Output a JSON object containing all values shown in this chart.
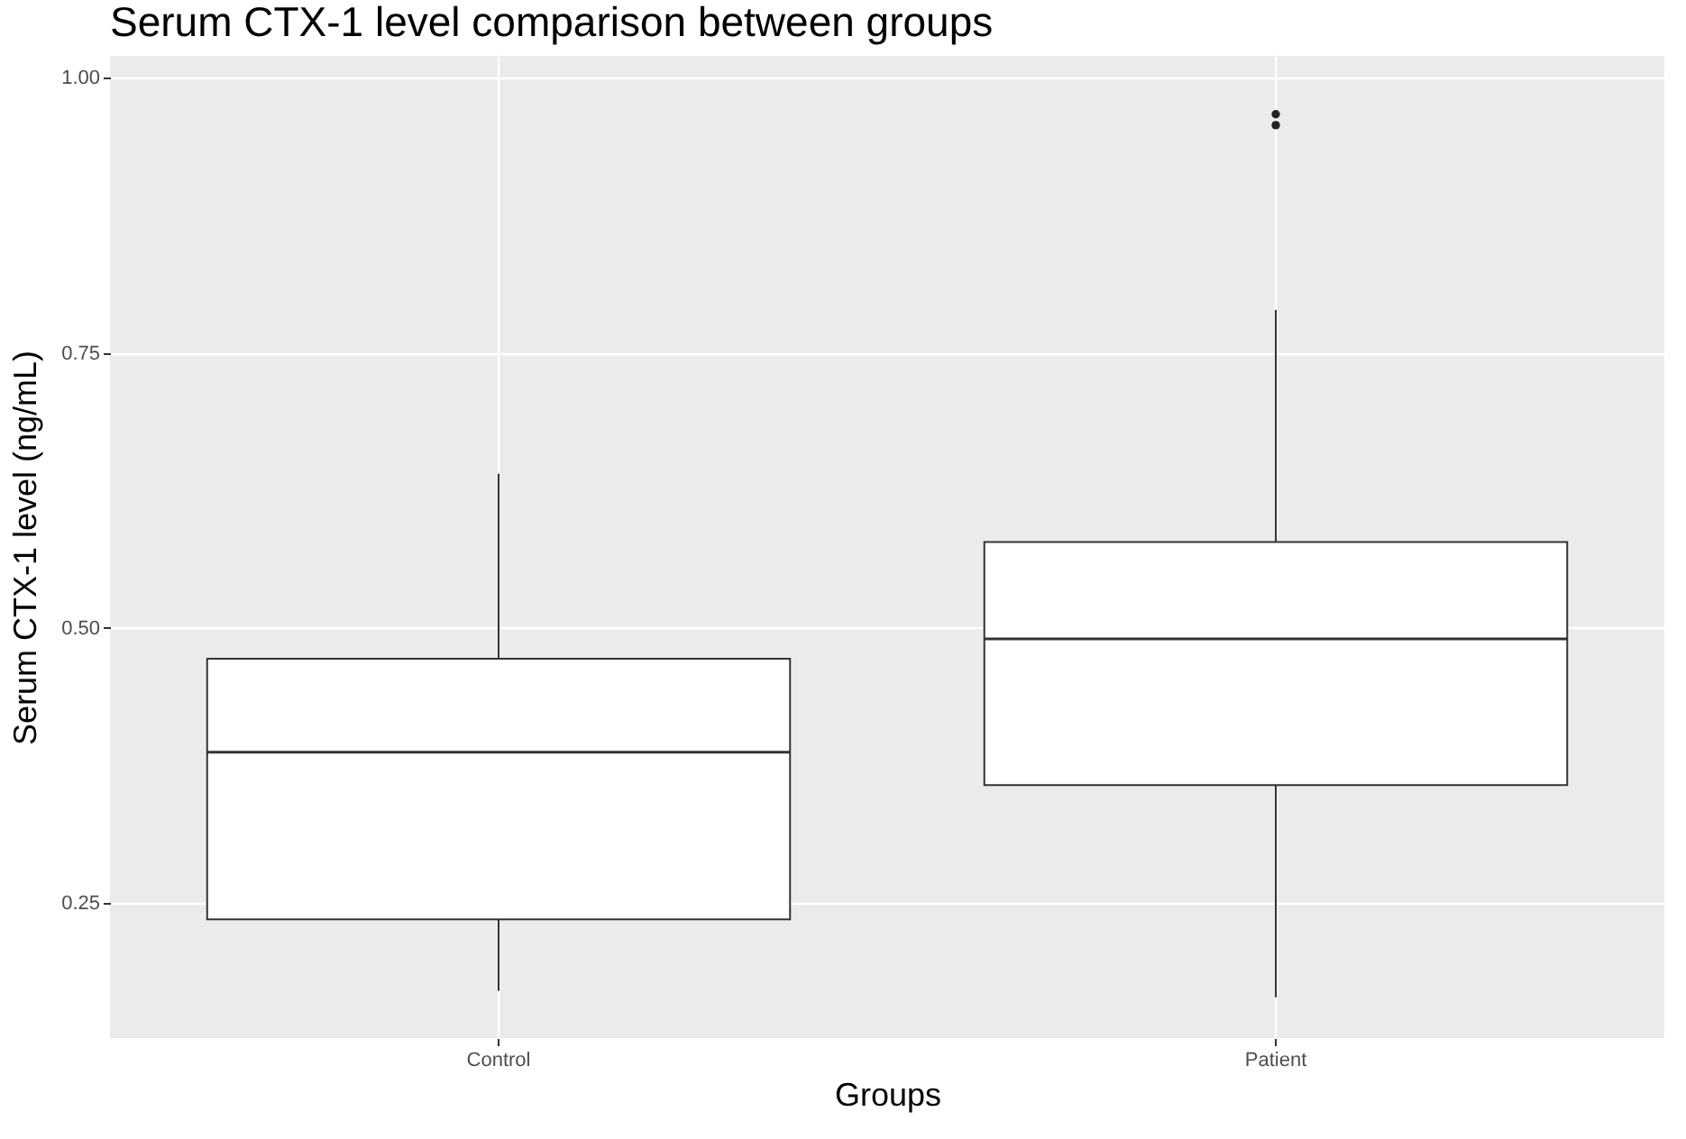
{
  "chart_data": {
    "type": "box",
    "title": "Serum CTX-1 level comparison between groups",
    "xlabel": "Groups",
    "ylabel": "Serum CTX-1 level (ng/mL)",
    "categories": [
      "Control",
      "Patient"
    ],
    "boxes": [
      {
        "low": 0.17,
        "q1": 0.235,
        "median": 0.387,
        "q3": 0.472,
        "high": 0.64
      },
      {
        "low": 0.164,
        "q1": 0.357,
        "median": 0.49,
        "q3": 0.578,
        "high": 0.789,
        "outliers": [
          0.967,
          0.957
        ]
      }
    ],
    "ylim": [
      0.127,
      1.02
    ],
    "yticks": [
      {
        "value": 0.25,
        "label": "0.25"
      },
      {
        "value": 0.5,
        "label": "0.50"
      },
      {
        "value": 0.75,
        "label": "0.75"
      },
      {
        "value": 1.0,
        "label": "1.00"
      }
    ],
    "grid": true
  }
}
